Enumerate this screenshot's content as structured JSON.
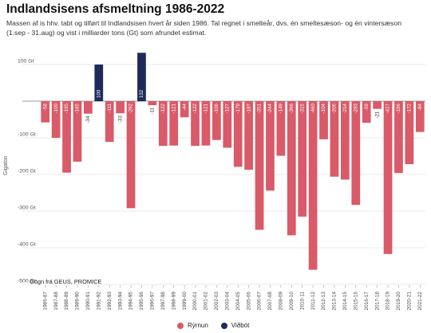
{
  "title": "Indlandsisens afsmeltning 1986-2022",
  "subtitle": "Massen af is hhv. tabt og tilført til Indlandsisen hvert år siden 1986. Tal regnet i smelteår, dvs. én smeltesæson- og én vintersæson (1.sep - 31.aug) og vist i milliarder tons (Gt) som afrundet estimat.",
  "source": "Gögn frá GEUS, PROMICE",
  "colors": {
    "loss": "#d95a68",
    "gain": "#1f2a5c"
  },
  "chart_data": {
    "type": "bar",
    "ylabel": "Gigaton",
    "ylim": [
      -500,
      100
    ],
    "yticks": [
      100,
      0,
      -100,
      -200,
      -300,
      -400,
      -500
    ],
    "ytick_labels": [
      "100 Gt",
      "",
      "-100 Gt",
      "-200 Gt",
      "-300 Gt",
      "-400 Gt",
      "-500 Gt"
    ],
    "grid": true,
    "legend_position": "bottom",
    "categories": [
      "1986-87",
      "1987-88",
      "1988-89",
      "1989-90",
      "1990-91",
      "1991-92",
      "1992-93",
      "1993-94",
      "1994-95",
      "1995-96",
      "1996-97",
      "1997-98",
      "1998-99",
      "1999-00",
      "2000-01",
      "2001-02",
      "2002-03",
      "2003-04",
      "2004-05",
      "2005-06",
      "2006-07",
      "2007-08",
      "2008-09",
      "2009-10",
      "2010-11",
      "2011-12",
      "2012-13",
      "2013-14",
      "2014-15",
      "2015-16",
      "2016-17",
      "2017-18",
      "2018-19",
      "2019-20",
      "2020-21",
      "2021-22"
    ],
    "values": [
      -58,
      -100,
      -195,
      -165,
      -34,
      100,
      -111,
      -33,
      -292,
      132,
      -11,
      -122,
      -121,
      -44,
      -122,
      -121,
      -106,
      -127,
      -179,
      -187,
      -351,
      -244,
      -149,
      -366,
      -315,
      -460,
      -104,
      -206,
      -214,
      -283,
      -59,
      -21,
      -417,
      -196,
      -172,
      -84
    ],
    "series": [
      {
        "name": "Rýrnun",
        "color": "#d95a68"
      },
      {
        "name": "Viðbót",
        "color": "#1f2a5c"
      }
    ]
  }
}
